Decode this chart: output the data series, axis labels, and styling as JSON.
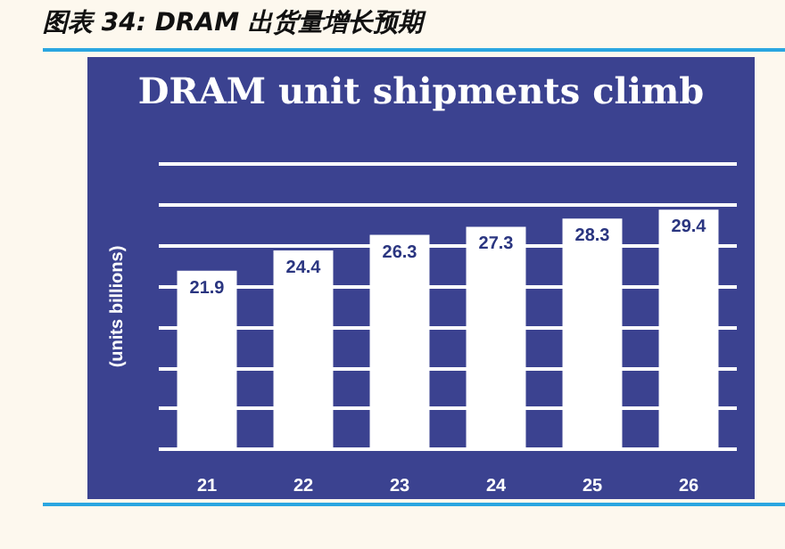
{
  "chart_data": {
    "type": "bar",
    "title": "图表 34: DRAM 出货量增长预期",
    "subtitle": "DRAM unit shipments climb",
    "ylabel": "(units billions)",
    "categories": [
      "21",
      "22",
      "23",
      "24",
      "25",
      "26"
    ],
    "values": [
      21.9,
      24.4,
      26.3,
      27.3,
      28.3,
      29.4
    ],
    "color": "#ffffff",
    "ylim": [
      0,
      35
    ],
    "yticks": [
      {
        "value": 0,
        "label": null
      },
      {
        "value": 5,
        "label": null
      },
      {
        "value": 10,
        "label": null
      },
      {
        "value": 15,
        "label": null
      },
      {
        "value": 20,
        "label": null
      },
      {
        "value": 25,
        "label": null
      },
      {
        "value": 30,
        "label": null
      },
      {
        "value": 35,
        "label": null
      }
    ],
    "grid": "y",
    "data_labels": true,
    "tick_labels": "x"
  }
}
